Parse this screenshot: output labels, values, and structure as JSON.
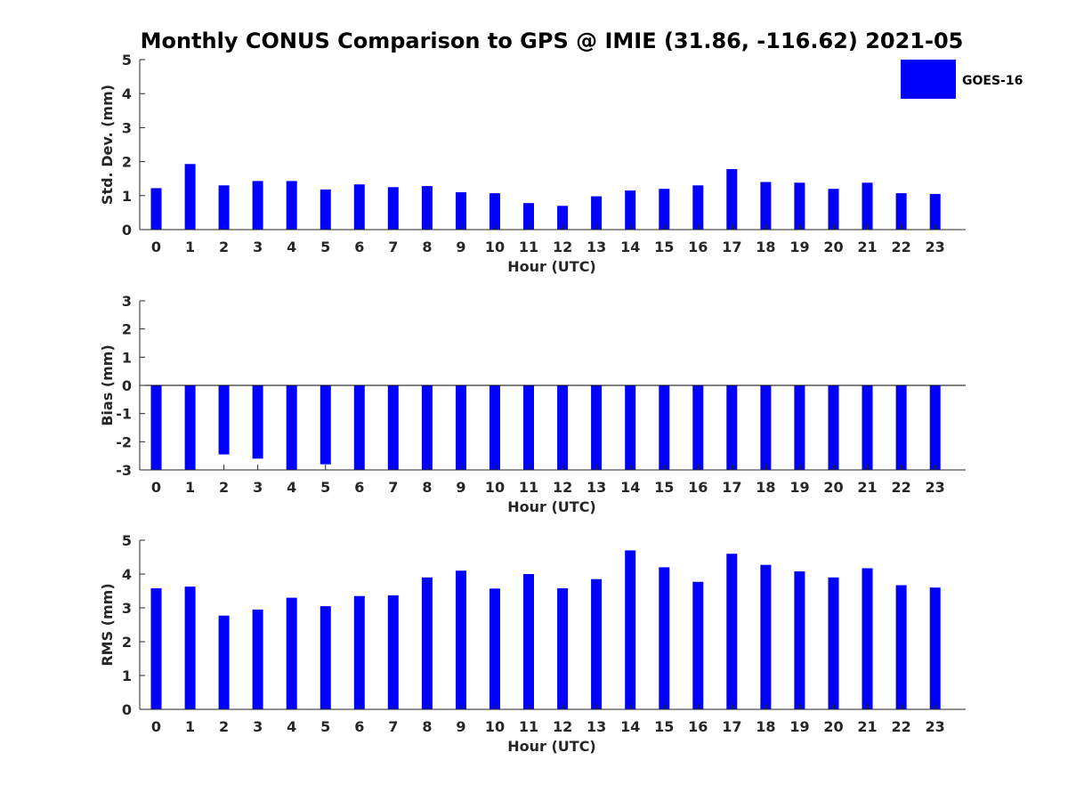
{
  "figure": {
    "title": "Monthly CONUS Comparison to GPS @ IMIE (31.86, -116.62) 2021-05",
    "legend": {
      "label": "GOES-16",
      "color": "#0000ff",
      "placement": "top-right"
    }
  },
  "chart_data": [
    {
      "type": "bar",
      "xlabel": "Hour (UTC)",
      "ylabel": "Std. Dev. (mm)",
      "categories": [
        "0",
        "1",
        "2",
        "3",
        "4",
        "5",
        "6",
        "7",
        "8",
        "9",
        "10",
        "11",
        "12",
        "13",
        "14",
        "15",
        "16",
        "17",
        "18",
        "19",
        "20",
        "21",
        "22",
        "23"
      ],
      "series": [
        {
          "name": "GOES-16",
          "values": [
            1.22,
            1.93,
            1.3,
            1.43,
            1.43,
            1.18,
            1.33,
            1.25,
            1.28,
            1.1,
            1.07,
            0.78,
            0.7,
            0.98,
            1.15,
            1.2,
            1.3,
            1.78,
            1.4,
            1.38,
            1.2,
            1.38,
            1.07,
            1.05
          ]
        }
      ],
      "ylim": [
        0,
        5
      ],
      "yticks": [
        0,
        1,
        2,
        3,
        4,
        5
      ],
      "grid": false
    },
    {
      "type": "bar",
      "xlabel": "Hour (UTC)",
      "ylabel": "Bias (mm)",
      "categories": [
        "0",
        "1",
        "2",
        "3",
        "4",
        "5",
        "6",
        "7",
        "8",
        "9",
        "10",
        "11",
        "12",
        "13",
        "14",
        "15",
        "16",
        "17",
        "18",
        "19",
        "20",
        "21",
        "22",
        "23"
      ],
      "series": [
        {
          "name": "GOES-16",
          "values": [
            -3.0,
            -3.0,
            -2.45,
            -2.6,
            -3.0,
            -2.8,
            -3.0,
            -3.0,
            -3.0,
            -3.0,
            -3.0,
            -3.0,
            -3.0,
            -3.0,
            -3.0,
            -3.0,
            -3.0,
            -3.0,
            -3.0,
            -3.0,
            -3.0,
            -3.0,
            -3.0,
            -3.0
          ]
        }
      ],
      "ylim": [
        -3,
        3
      ],
      "yticks": [
        -3,
        -2,
        -1,
        0,
        1,
        2,
        3
      ],
      "grid": false
    },
    {
      "type": "bar",
      "xlabel": "Hour (UTC)",
      "ylabel": "RMS (mm)",
      "categories": [
        "0",
        "1",
        "2",
        "3",
        "4",
        "5",
        "6",
        "7",
        "8",
        "9",
        "10",
        "11",
        "12",
        "13",
        "14",
        "15",
        "16",
        "17",
        "18",
        "19",
        "20",
        "21",
        "22",
        "23"
      ],
      "series": [
        {
          "name": "GOES-16",
          "values": [
            3.58,
            3.63,
            2.77,
            2.95,
            3.3,
            3.05,
            3.35,
            3.37,
            3.9,
            4.1,
            3.57,
            4.0,
            3.58,
            3.85,
            4.7,
            4.2,
            3.77,
            4.6,
            4.27,
            4.08,
            3.9,
            4.17,
            3.67,
            3.6
          ]
        }
      ],
      "ylim": [
        0,
        5
      ],
      "yticks": [
        0,
        1,
        2,
        3,
        4,
        5
      ],
      "grid": false
    }
  ]
}
